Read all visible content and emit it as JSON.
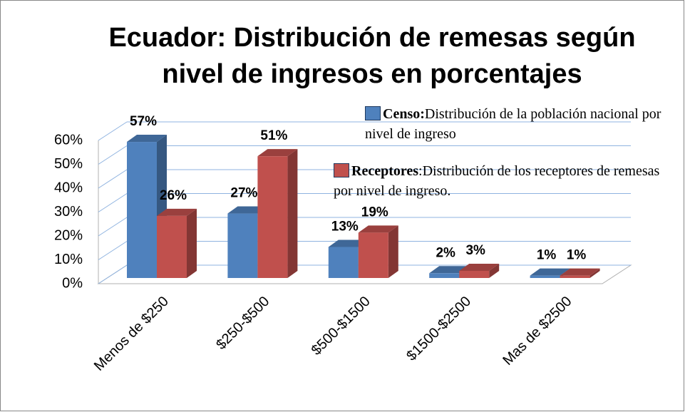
{
  "chart_data": {
    "type": "bar3d",
    "title": [
      "Ecuador: Distribución de remesas según",
      "nivel de ingresos en porcentajes"
    ],
    "categories": [
      "Menos de $250",
      "$250-$500",
      "$500-$1500",
      "$1500-$2500",
      "Mas de $2500"
    ],
    "series": [
      {
        "name": "Censo:",
        "description": "Distribución de la población nacional por nivel de ingreso",
        "color": "#4f81bd",
        "values": [
          57,
          27,
          13,
          2,
          1
        ],
        "value_labels": [
          "57%",
          "27%",
          "13%",
          "2%",
          "1%"
        ]
      },
      {
        "name": "Receptores",
        "description": ":Distribución de los receptores de remesas por nivel de ingreso.",
        "color": "#c0504d",
        "values": [
          26,
          51,
          19,
          3,
          1
        ],
        "value_labels": [
          "26%",
          "51%",
          "19%",
          "3%",
          "1%"
        ]
      }
    ],
    "ylim": [
      0,
      60
    ],
    "yticks": [
      {
        "value": 0,
        "label": "0%"
      },
      {
        "value": 10,
        "label": "10%"
      },
      {
        "value": 20,
        "label": "20%"
      },
      {
        "value": 30,
        "label": "30%"
      },
      {
        "value": 40,
        "label": "40%"
      },
      {
        "value": 50,
        "label": "50%"
      },
      {
        "value": 60,
        "label": "60%"
      }
    ],
    "grid": true
  }
}
